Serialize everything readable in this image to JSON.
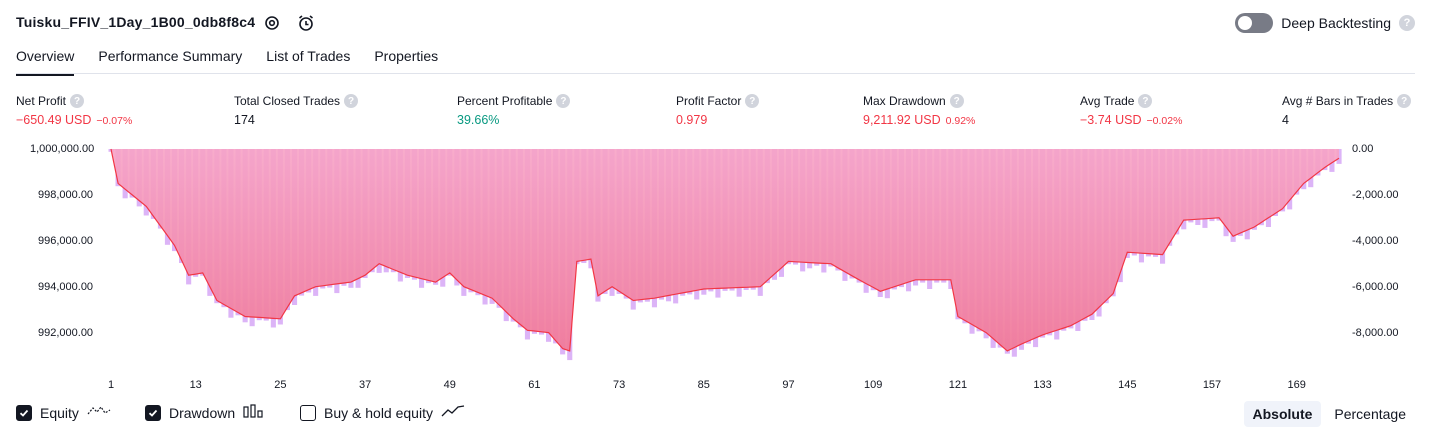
{
  "header": {
    "title": "Tuisku_FFIV_1Day_1B00_0db8f8c4",
    "deep_backtesting_label": "Deep Backtesting",
    "deep_backtesting_on": false,
    "help_glyph": "?"
  },
  "tabs": [
    {
      "label": "Overview",
      "active": true
    },
    {
      "label": "Performance Summary",
      "active": false
    },
    {
      "label": "List of Trades",
      "active": false
    },
    {
      "label": "Properties",
      "active": false
    }
  ],
  "stats": [
    {
      "label": "Net Profit",
      "value": "−650.49 USD",
      "pct": "−0.07%",
      "color": "#f23645"
    },
    {
      "label": "Total Closed Trades",
      "value": "174",
      "pct": "",
      "color": "#131722"
    },
    {
      "label": "Percent Profitable",
      "value": "39.66%",
      "pct": "",
      "color": "#089981"
    },
    {
      "label": "Profit Factor",
      "value": "0.979",
      "pct": "",
      "color": "#f23645"
    },
    {
      "label": "Max Drawdown",
      "value": "9,211.92 USD",
      "pct": "0.92%",
      "color": "#f23645"
    },
    {
      "label": "Avg Trade",
      "value": "−3.74 USD",
      "pct": "−0.02%",
      "color": "#f23645"
    },
    {
      "label": "Avg # Bars in Trades",
      "value": "4",
      "pct": "",
      "color": "#131722"
    }
  ],
  "chart_data": {
    "type": "area",
    "left_axis": {
      "ticks": [
        "1,000,000.00",
        "998,000.00",
        "996,000.00",
        "994,000.00",
        "992,000.00"
      ],
      "range": [
        990500,
        1000000
      ]
    },
    "right_axis": {
      "ticks": [
        "0.00",
        "-2,000.00",
        "-4,000.00",
        "-6,000.00",
        "-8,000.00"
      ],
      "range": [
        -9500,
        0
      ]
    },
    "x_ticks": [
      "1",
      "13",
      "25",
      "37",
      "49",
      "61",
      "73",
      "85",
      "97",
      "109",
      "121",
      "133",
      "145",
      "157",
      "169"
    ],
    "x_range": [
      1,
      175
    ],
    "equity_anchors": [
      [
        1,
        1000000
      ],
      [
        2,
        998500
      ],
      [
        4,
        998000
      ],
      [
        6,
        997500
      ],
      [
        10,
        995800
      ],
      [
        12,
        994500
      ],
      [
        14,
        994600
      ],
      [
        16,
        993400
      ],
      [
        20,
        992700
      ],
      [
        25,
        992600
      ],
      [
        27,
        993600
      ],
      [
        30,
        994000
      ],
      [
        35,
        994200
      ],
      [
        37,
        994500
      ],
      [
        39,
        995000
      ],
      [
        43,
        994500
      ],
      [
        47,
        994200
      ],
      [
        49,
        994600
      ],
      [
        51,
        994000
      ],
      [
        55,
        993500
      ],
      [
        58,
        992600
      ],
      [
        60,
        992100
      ],
      [
        63,
        992000
      ],
      [
        65,
        991300
      ],
      [
        66,
        991200
      ],
      [
        67,
        995100
      ],
      [
        69,
        995200
      ],
      [
        70,
        993600
      ],
      [
        72,
        994000
      ],
      [
        75,
        993400
      ],
      [
        78,
        993500
      ],
      [
        85,
        993900
      ],
      [
        93,
        994000
      ],
      [
        97,
        995100
      ],
      [
        103,
        995000
      ],
      [
        107,
        994300
      ],
      [
        110,
        993800
      ],
      [
        115,
        994300
      ],
      [
        120,
        994300
      ],
      [
        121,
        992700
      ],
      [
        125,
        992000
      ],
      [
        128,
        991200
      ],
      [
        130,
        991500
      ],
      [
        133,
        991900
      ],
      [
        137,
        992300
      ],
      [
        140,
        992800
      ],
      [
        143,
        993700
      ],
      [
        145,
        995500
      ],
      [
        150,
        995400
      ],
      [
        153,
        996900
      ],
      [
        158,
        997000
      ],
      [
        160,
        996200
      ],
      [
        163,
        996600
      ],
      [
        167,
        997400
      ],
      [
        170,
        998500
      ],
      [
        173,
        999200
      ],
      [
        175,
        999600
      ]
    ],
    "series": [
      {
        "name": "Equity",
        "color": "#f23645"
      },
      {
        "name": "Drawdown",
        "color": "#d49cf7"
      }
    ]
  },
  "legend": [
    {
      "label": "Equity",
      "checked": true,
      "icon": "equity-line-icon"
    },
    {
      "label": "Drawdown",
      "checked": true,
      "icon": "drawdown-bars-icon"
    },
    {
      "label": "Buy & hold equity",
      "checked": false,
      "icon": "buy-hold-line-icon"
    }
  ],
  "scale_toggle": {
    "absolute": "Absolute",
    "percentage": "Percentage",
    "selected": "Absolute"
  }
}
